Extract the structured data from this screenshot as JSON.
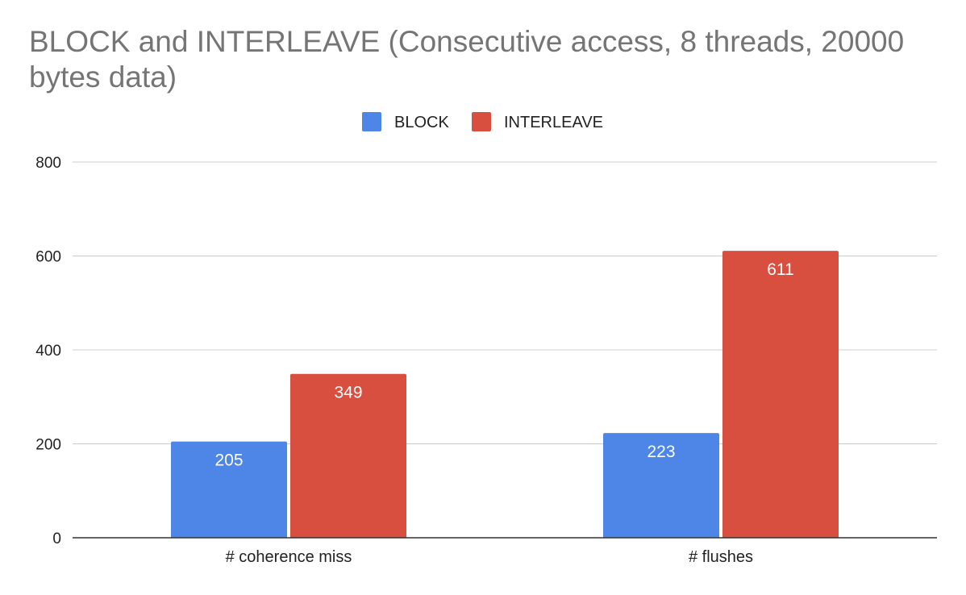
{
  "chart_data": {
    "type": "bar",
    "title": "BLOCK and INTERLEAVE (Consecutive access, 8 threads, 20000 bytes data)",
    "xlabel": "",
    "ylabel": "",
    "categories": [
      "# coherence miss",
      "# flushes"
    ],
    "series": [
      {
        "name": "BLOCK",
        "values": [
          205,
          223
        ],
        "color": "#4e86e8"
      },
      {
        "name": "INTERLEAVE",
        "values": [
          349,
          611
        ],
        "color": "#d94f3f"
      }
    ],
    "ylim": [
      0,
      800
    ],
    "yticks": [
      0,
      200,
      400,
      600,
      800
    ],
    "grid": true,
    "legend": "top-center",
    "data_labels": true
  }
}
